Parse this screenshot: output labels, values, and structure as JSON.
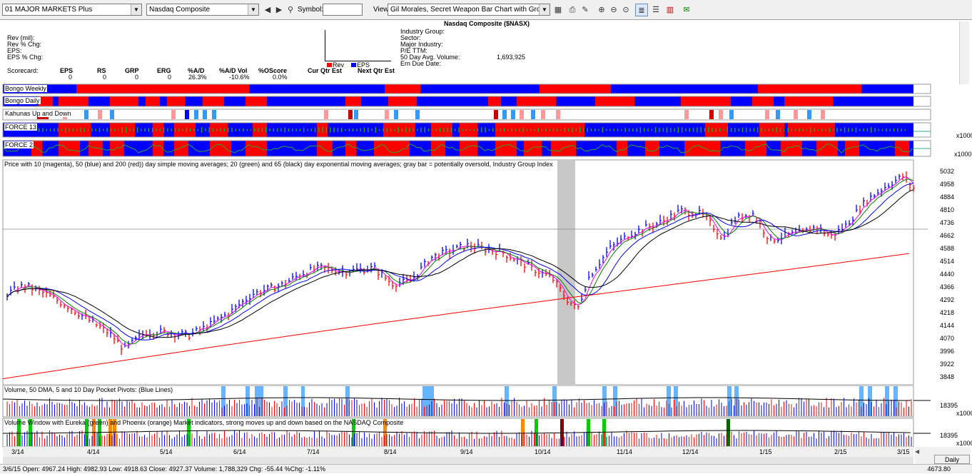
{
  "toolbar": {
    "list_select": "01 MAJOR MARKETS Plus",
    "symbol_select": "Nasdaq Composite",
    "symbol_label": "Symbol:",
    "symbol_value": "",
    "view_label": "View:",
    "view_select": "Gil Morales, Secret Weapon Bar Chart with Group Index"
  },
  "info": {
    "rev_mil": "Rev (mil):",
    "rev_chg": "Rev % Chg:",
    "eps": "EPS:",
    "eps_chg": "EPS % Chg:",
    "scorecard_label": "Scorecard:",
    "score_headers": [
      "EPS",
      "RS",
      "GRP",
      "ERG",
      "%A/D",
      "%A/D Vol",
      "%OScore"
    ],
    "score_values": [
      "0",
      "0",
      "0",
      "0",
      "26.3%",
      "-10.6%",
      "0.0%"
    ],
    "cur_qtr": "Cur Qtr Est",
    "next_qtr": "Next Qtr Est",
    "legend_rev": "Rev",
    "legend_eps": "EPS",
    "title": "Nasdaq Composite ($NASX)",
    "industry_group": "Industry Group:",
    "sector": "Sector:",
    "major_industry": "Major Industry:",
    "pe_ttm": "P/E TTM:",
    "avg_vol_label": "50 Day Avg. Volume:",
    "avg_vol_value": "1,693,925",
    "ern_due": "Ern Due Date:"
  },
  "bands": {
    "bongo_weekly": "Bongo Weekly",
    "bongo_daily": "Bongo Daily",
    "kahunas": "Kahunas Up and Down",
    "force13": "FORCE 13",
    "force2": "FORCE 2",
    "x1000a": "x1000",
    "x1000b": "x1000"
  },
  "price_panel": {
    "caption": "Price with 10 (magenta), 50 (blue) and 200 (red)) day simple moving averages; 20 (green) and 65 (black) day exponential moving averages; gray bar = potentially oversold, Industry Group Index",
    "axis_labels": [
      "5032",
      "4958",
      "4884",
      "4810",
      "4736",
      "4662",
      "4588",
      "4514",
      "4440",
      "4366",
      "4292",
      "4218",
      "4144",
      "4070",
      "3996",
      "3922",
      "3848"
    ]
  },
  "volume_panel": {
    "caption": "Volume, 50 DMA, 5 and 10 Day Pocket Pivots: (Blue Lines)",
    "axis_value": "18395",
    "axis_unit": "x1000"
  },
  "eureka_panel": {
    "caption": "Volume Window with Eureka (green) and Phoenix (orange) Market indicators, strong moves up and down based on the NASDAQ Composite",
    "axis_value": "18395",
    "axis_unit": "x1000"
  },
  "x_axis": [
    "3/14",
    "4/14",
    "5/14",
    "6/14",
    "7/14",
    "8/14",
    "9/14",
    "10/14",
    "11/14",
    "12/14",
    "1/15",
    "2/15",
    "3/15"
  ],
  "status": "3/6/15 Open: 4967.24 High: 4982.93 Low: 4918.63 Close: 4927.37 Volume: 1,788,329 Chg: -55.44 %Chg: -1.11%",
  "status_right": "4673.80",
  "daily_button": "Daily",
  "colors": {
    "blue": "#0000ff",
    "red": "#ff0000",
    "magenta": "#ff00ff",
    "green": "#008000",
    "gray": "#c8c8c8"
  }
}
